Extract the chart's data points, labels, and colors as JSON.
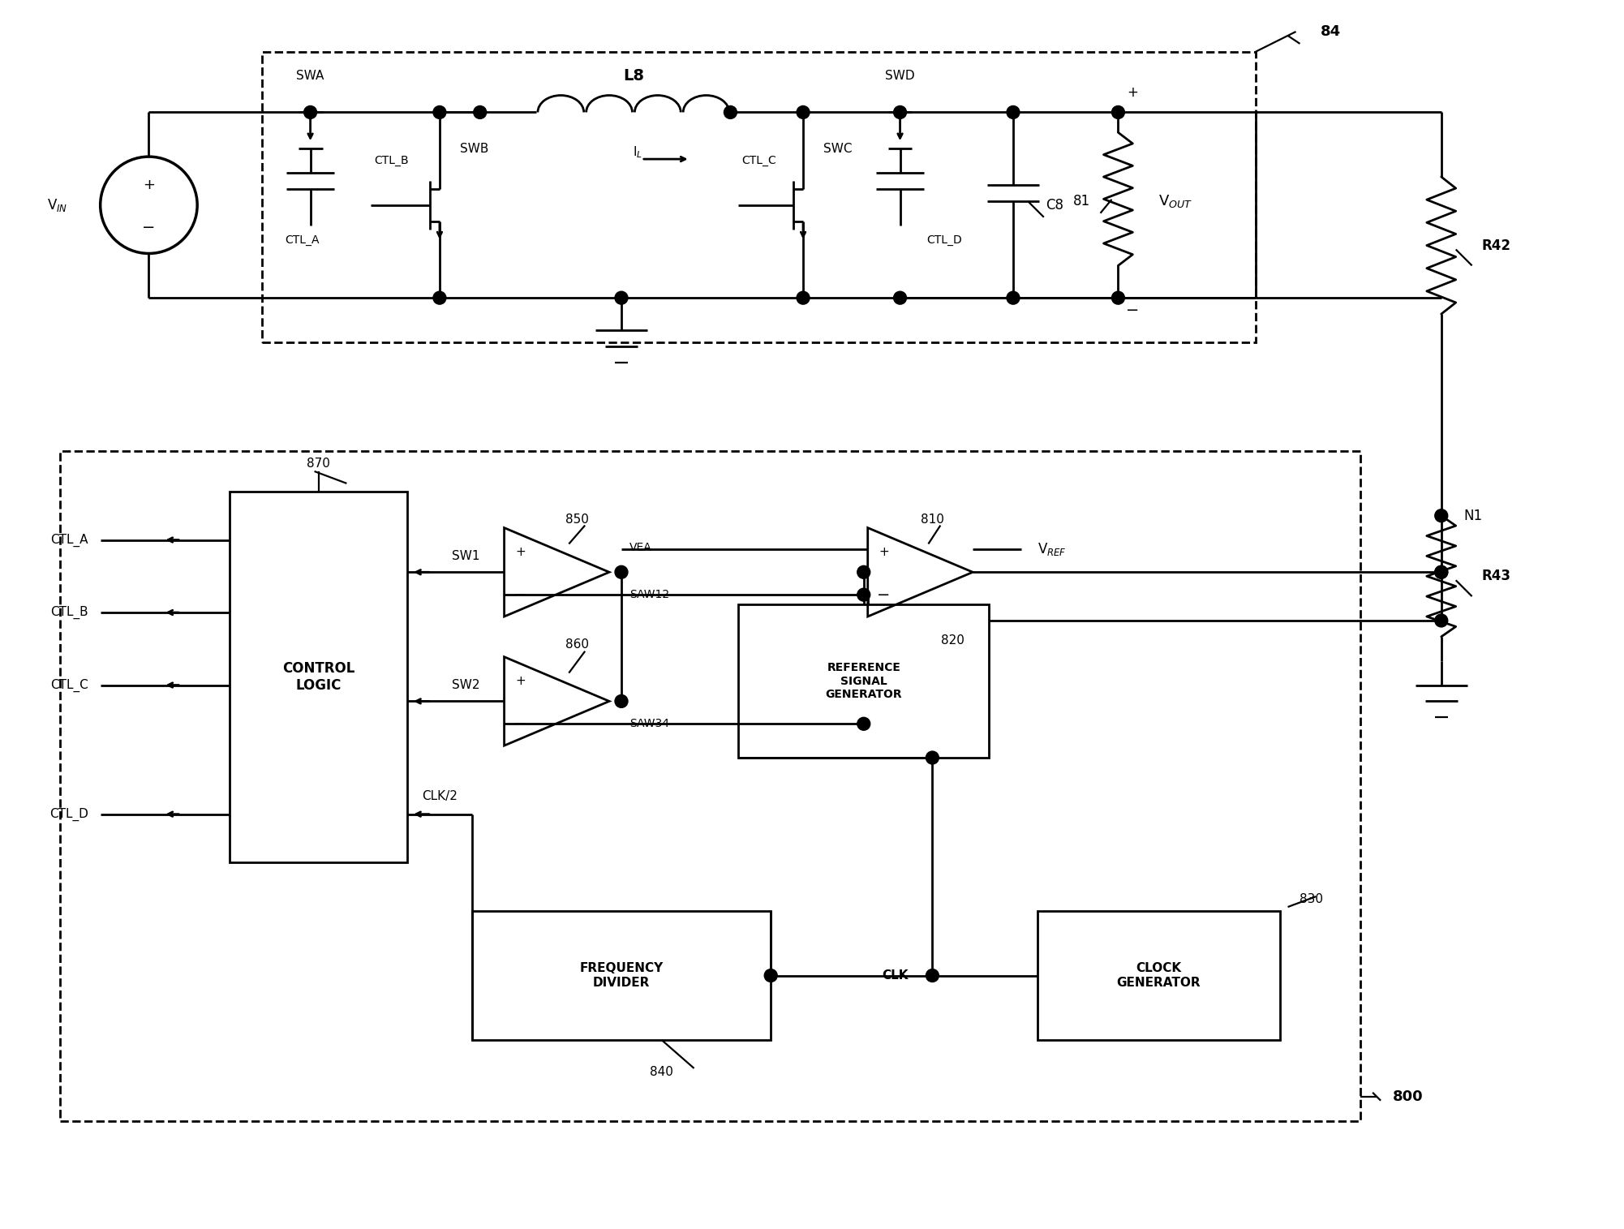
{
  "bg_color": "#ffffff",
  "lc": "#000000",
  "figsize": [
    20.02,
    15.15
  ],
  "dpi": 100,
  "labels": {
    "VIN": "V$_{IN}$",
    "VOUT": "V$_{OUT}$",
    "VREF": "V$_{REF}$",
    "SWA": "SWA",
    "SWB": "SWB",
    "SWC": "SWC",
    "SWD": "SWD",
    "L8": "L8",
    "IL": "I$_{L}$",
    "C8": "C8",
    "CTL_A": "CTL_A",
    "CTL_B": "CTL_B",
    "CTL_C": "CTL_C",
    "CTL_D": "CTL_D",
    "n81": "81",
    "n84": "84",
    "n800": "800",
    "n810": "810",
    "n820": "820",
    "n830": "830",
    "n840": "840",
    "n850": "850",
    "n860": "860",
    "n870": "870",
    "N1": "N1",
    "VEA": "VEA",
    "SAW12": "SAW12",
    "SAW34": "SAW34",
    "SW1": "SW1",
    "SW2": "SW2",
    "CLK": "CLK",
    "CLK2": "CLK/2",
    "CONTROL_LOGIC": "CONTROL\nLOGIC",
    "FREQ_DIV": "FREQUENCY\nDIVIDER",
    "CLK_GEN": "CLOCK\nGENERATOR",
    "REF_SIG": "REFERENCE\nSIGNAL\nGENERATOR"
  }
}
